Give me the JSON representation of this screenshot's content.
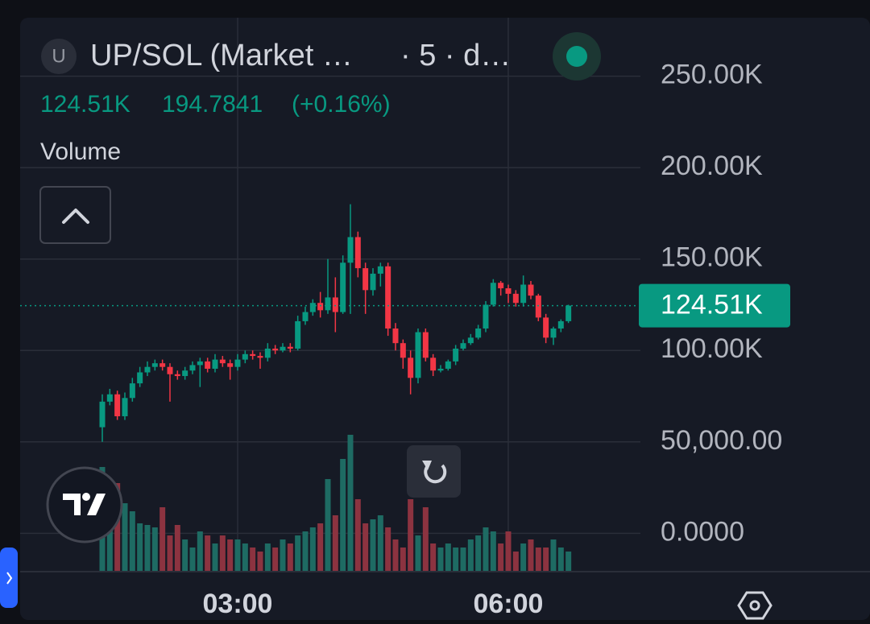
{
  "header": {
    "icon": "U",
    "symbol": "UP/SOL (Market …",
    "interval": "· 5 · d…",
    "values": [
      "124.51K",
      "194.7841",
      "(+0.16%)"
    ],
    "indicator": "Volume"
  },
  "chart_data": {
    "type": "candlestick",
    "up_color": "#089981",
    "down_color": "#f23645",
    "volume_up_color": "#1e6b63",
    "volume_down_color": "#8c3340",
    "grid": true,
    "ylim": [
      -21000,
      282000
    ],
    "yticks": [
      {
        "value": 0,
        "label": "0.0000"
      },
      {
        "value": 50000,
        "label": "50,000.00"
      },
      {
        "value": 100000,
        "label": "100.00K"
      },
      {
        "value": 150000,
        "label": "150.00K"
      },
      {
        "value": 200000,
        "label": "200.00K"
      },
      {
        "value": 250000,
        "label": "250.00K"
      }
    ],
    "categories": [
      null,
      null,
      null,
      null,
      null,
      null,
      null,
      null,
      null,
      null,
      null,
      null,
      null,
      null,
      null,
      null,
      null,
      null,
      "03:00",
      null,
      null,
      null,
      null,
      null,
      null,
      null,
      null,
      null,
      null,
      null,
      null,
      null,
      null,
      null,
      null,
      null,
      null,
      null,
      null,
      null,
      null,
      null,
      null,
      null,
      null,
      null,
      null,
      null,
      null,
      null,
      null,
      null,
      null,
      null,
      "06:00",
      null,
      null,
      null,
      null,
      null,
      null,
      null,
      null
    ],
    "open": [
      58000,
      72000,
      76000,
      64000,
      74000,
      82000,
      88000,
      91000,
      93000,
      91000,
      87000,
      86000,
      89000,
      92000,
      94000,
      90000,
      95000,
      93000,
      91000,
      95000,
      98000,
      97000,
      96000,
      101000,
      100000,
      102000,
      101000,
      116000,
      121000,
      126000,
      122000,
      129000,
      121000,
      148000,
      162000,
      145000,
      133000,
      142000,
      146000,
      112000,
      104000,
      96000,
      85000,
      110000,
      96000,
      89000,
      90000,
      94000,
      101000,
      104000,
      107000,
      112000,
      125000,
      137000,
      134000,
      131000,
      126000,
      136000,
      130000,
      118000,
      107000,
      112000,
      116000
    ],
    "high": [
      76000,
      79000,
      78000,
      77000,
      85000,
      91000,
      94000,
      95000,
      95000,
      93000,
      89000,
      91000,
      94000,
      96000,
      96000,
      98000,
      97000,
      95000,
      98000,
      100000,
      100000,
      99000,
      104000,
      103000,
      104000,
      104000,
      119000,
      124000,
      128000,
      132000,
      150000,
      140000,
      152000,
      180000,
      165000,
      148000,
      145000,
      148000,
      148000,
      115000,
      106000,
      100000,
      112000,
      112000,
      98000,
      92000,
      95000,
      103000,
      106000,
      109000,
      114000,
      127000,
      139000,
      138000,
      136000,
      133000,
      141000,
      138000,
      131000,
      120000,
      113000,
      117000,
      125000
    ],
    "low": [
      50000,
      70000,
      62000,
      62000,
      72000,
      80000,
      86000,
      89000,
      89000,
      72000,
      84000,
      84000,
      87000,
      80000,
      88000,
      88000,
      91000,
      84000,
      89000,
      93000,
      95000,
      90000,
      94000,
      98000,
      99000,
      99000,
      100000,
      114000,
      119000,
      118000,
      120000,
      110000,
      120000,
      120000,
      140000,
      120000,
      130000,
      135000,
      108000,
      100000,
      90000,
      76000,
      82000,
      94000,
      86000,
      88000,
      89000,
      92000,
      100000,
      103000,
      106000,
      110000,
      124000,
      130000,
      126000,
      124000,
      124000,
      128000,
      116000,
      104000,
      103000,
      110000,
      115000
    ],
    "close": [
      72000,
      76000,
      64000,
      74000,
      82000,
      88000,
      91000,
      93000,
      91000,
      87000,
      86000,
      89000,
      92000,
      94000,
      90000,
      95000,
      93000,
      91000,
      95000,
      98000,
      97000,
      96000,
      101000,
      100000,
      102000,
      101000,
      116000,
      121000,
      126000,
      122000,
      129000,
      121000,
      148000,
      162000,
      145000,
      133000,
      142000,
      146000,
      112000,
      104000,
      96000,
      85000,
      110000,
      96000,
      89000,
      90000,
      94000,
      101000,
      104000,
      107000,
      112000,
      125000,
      137000,
      134000,
      131000,
      126000,
      136000,
      130000,
      118000,
      107000,
      112000,
      116000,
      124510
    ],
    "volume": [
      130,
      80,
      110,
      85,
      75,
      60,
      58,
      55,
      80,
      45,
      58,
      40,
      30,
      50,
      45,
      35,
      45,
      40,
      40,
      35,
      30,
      25,
      35,
      30,
      40,
      35,
      45,
      50,
      55,
      60,
      115,
      70,
      140,
      170,
      90,
      60,
      65,
      70,
      55,
      40,
      30,
      90,
      45,
      80,
      35,
      30,
      35,
      30,
      30,
      40,
      45,
      55,
      50,
      35,
      50,
      25,
      35,
      40,
      30,
      30,
      40,
      30,
      25
    ],
    "last_label": "124.51K"
  }
}
